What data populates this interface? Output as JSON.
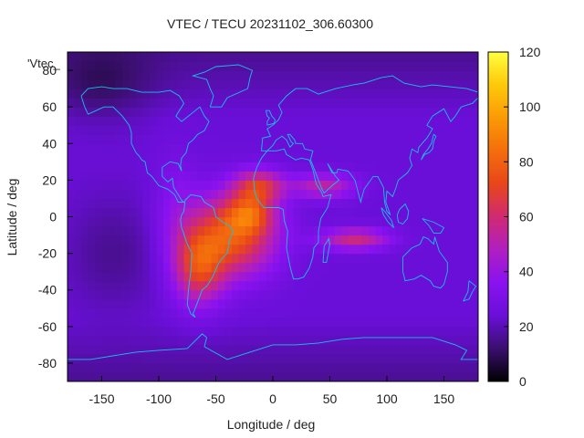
{
  "chart_data": {
    "type": "heatmap",
    "title": "VTEC / TECU 20231102_306.60300",
    "xlabel": "Longitude / deg",
    "ylabel": "Latitude / deg",
    "legend_key": "'Vtec_",
    "xlim": [
      -180,
      180
    ],
    "ylim": [
      -90,
      90
    ],
    "x_ticks": [
      -150,
      -100,
      -50,
      0,
      50,
      100,
      150
    ],
    "y_ticks": [
      -80,
      -60,
      -40,
      -20,
      0,
      20,
      40,
      60,
      80
    ],
    "colorbar": {
      "range": [
        0,
        120
      ],
      "ticks": [
        0,
        20,
        40,
        60,
        80,
        100,
        120
      ],
      "colormap": [
        "#000000",
        "#3a0f6e",
        "#6a0fd8",
        "#8a12f0",
        "#b01fc0",
        "#d02a72",
        "#e8461a",
        "#f46e0c",
        "#fb9a06",
        "#fdc90a",
        "#ffff40"
      ]
    },
    "features": [
      {
        "name": "background",
        "lon": 0,
        "lat": 0,
        "vtec": 25
      },
      {
        "name": "main-crest-africa-atlantic",
        "lon": -30,
        "lat": 0,
        "vtec": 80
      },
      {
        "name": "south-america-anomaly",
        "lon": -60,
        "lat": -25,
        "vtec": 70
      },
      {
        "name": "north-crest-west-africa",
        "lon": -10,
        "lat": 18,
        "vtec": 88
      },
      {
        "name": "equatorial-peak",
        "lon": -20,
        "lat": 0,
        "vtec": 90
      },
      {
        "name": "indian-ocean-band",
        "lon": 70,
        "lat": -12,
        "vtec": 75
      },
      {
        "name": "asia-arm",
        "lon": 50,
        "lat": 18,
        "vtec": 62
      },
      {
        "name": "polar-low-north",
        "lon": -150,
        "lat": 70,
        "vtec": 12
      }
    ],
    "colors": {
      "coastline": "#16c2ea",
      "frame": "#000000",
      "text": "#222222"
    }
  }
}
